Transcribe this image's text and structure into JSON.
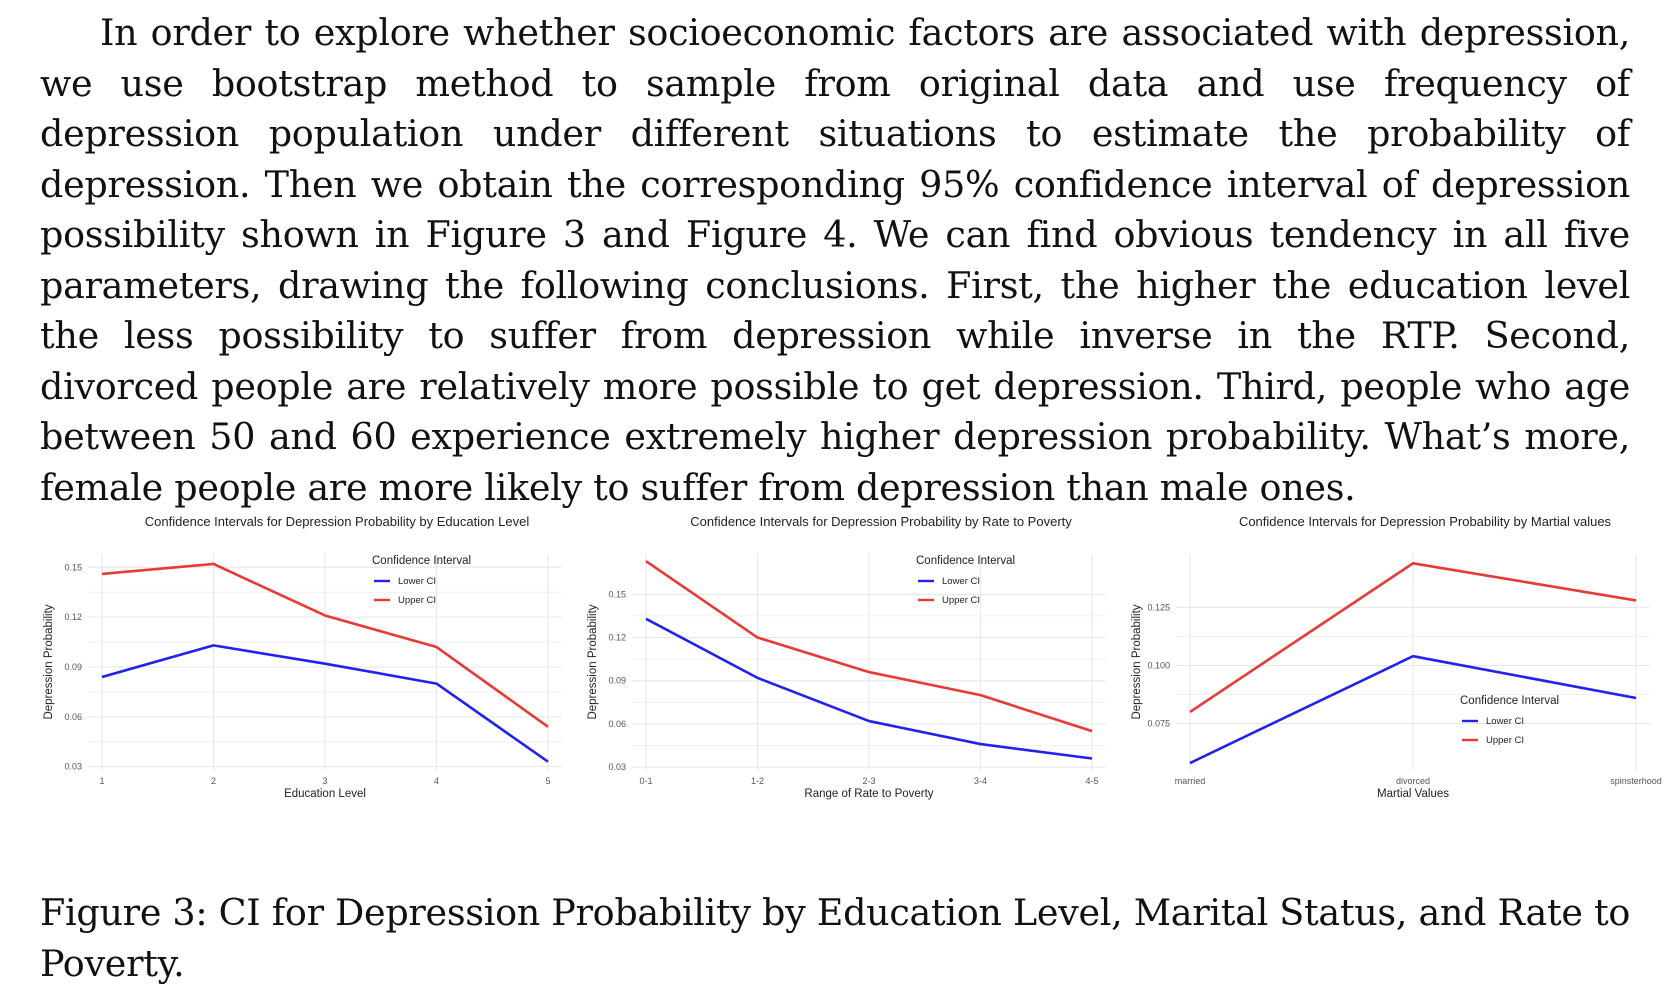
{
  "paragraph": "In order to explore whether socioeconomic factors are associated with depression, we use bootstrap method to sample from original data and use frequency of depression population under different situations to estimate the probability of depression. Then we obtain the corresponding 95% confidence interval of depression possibility shown in Figure 3 and Figure 4. We can find obvious tendency in all five parameters, drawing the following conclusions. First, the higher the education level the less possibility to suffer from depression while inverse in the RTP. Second, divorced people are relatively more possible to get depression. Third, people who age between 50 and 60 experience extremely higher depression probability. What’s more, female people are more likely to suffer from depression than male ones.",
  "caption": "Figure 3: CI for Depression Probability by Education Level, Marital Status, and Rate to Poverty.",
  "colors": {
    "lower": "#2222ee",
    "upper": "#e83a35"
  },
  "chart_data": [
    {
      "type": "line",
      "title": "Confidence Intervals for Depression Probability by Education Level",
      "xlabel": "Education Level",
      "ylabel": "Depression Probability",
      "categories": [
        "1",
        "2",
        "3",
        "4",
        "5"
      ],
      "yticks": [
        0.03,
        0.06,
        0.09,
        0.12,
        0.15
      ],
      "ylim": [
        0.028,
        0.158
      ],
      "legend": {
        "title": "Confidence Interval",
        "position": "top-right"
      },
      "grid": true,
      "series": [
        {
          "name": "Lower CI",
          "color": "#2222ee",
          "values": [
            0.084,
            0.103,
            0.092,
            0.08,
            0.033
          ]
        },
        {
          "name": "Upper CI",
          "color": "#e83a35",
          "values": [
            0.146,
            0.152,
            0.121,
            0.102,
            0.054
          ]
        }
      ]
    },
    {
      "type": "line",
      "title": "Confidence Intervals for Depression Probability by Rate to Poverty",
      "xlabel": "Range of Rate to Poverty",
      "ylabel": "Depression Probability",
      "categories": [
        "0-1",
        "1-2",
        "2-3",
        "3-4",
        "4-5"
      ],
      "yticks": [
        0.03,
        0.06,
        0.09,
        0.12,
        0.15
      ],
      "ylim": [
        0.028,
        0.178
      ],
      "legend": {
        "title": "Confidence Interval",
        "position": "top-right"
      },
      "grid": true,
      "series": [
        {
          "name": "Lower CI",
          "color": "#2222ee",
          "values": [
            0.133,
            0.092,
            0.062,
            0.046,
            0.036
          ]
        },
        {
          "name": "Upper CI",
          "color": "#e83a35",
          "values": [
            0.173,
            0.12,
            0.096,
            0.08,
            0.055
          ]
        }
      ]
    },
    {
      "type": "line",
      "title": "Confidence Intervals for Depression Probability by Martial values",
      "xlabel": "Martial Values",
      "ylabel": "Depression Probability",
      "categories": [
        "married",
        "divorced",
        "spinsterhood"
      ],
      "yticks": [
        0.075,
        0.1,
        0.125
      ],
      "ylim": [
        0.055,
        0.148
      ],
      "legend": {
        "title": "Confidence Interval",
        "position": "bottom-right"
      },
      "grid": true,
      "series": [
        {
          "name": "Lower CI",
          "color": "#2222ee",
          "values": [
            0.058,
            0.104,
            0.086
          ]
        },
        {
          "name": "Upper CI",
          "color": "#e83a35",
          "values": [
            0.08,
            0.144,
            0.128
          ]
        }
      ]
    }
  ]
}
